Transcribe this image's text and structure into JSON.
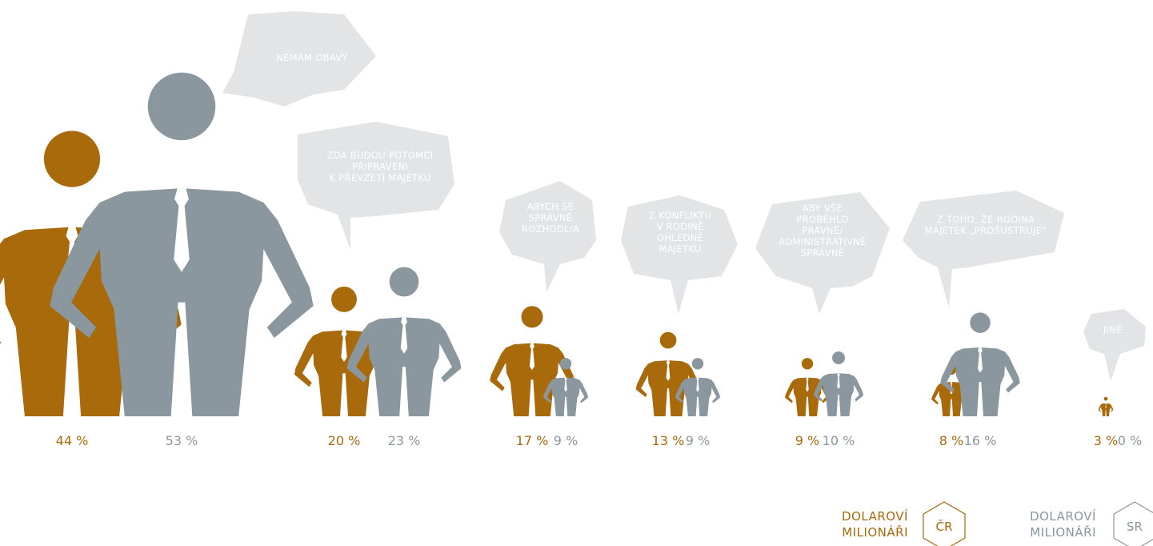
{
  "colors": {
    "cr": "#a86a0b",
    "sr": "#8a979e",
    "bubble": "#e3e4e5",
    "bubble_text": "#ffffff"
  },
  "chart_data": {
    "type": "bar",
    "title": "",
    "xlabel": "",
    "ylabel": "",
    "ylim": [
      0,
      55
    ],
    "categories": [
      [
        "NEMÁM OBAVY"
      ],
      [
        "ZDA BUDOU POTOMCI",
        "PŘIPRAVENI",
        "K PŘEVZETÍ MAJETKU"
      ],
      [
        "ABYCH SE",
        "SPRÁVNĚ",
        "ROZHODL/A"
      ],
      [
        "Z KONFLIKTU",
        "V RODINĚ",
        "OHLEDNĚ",
        "MAJETKU"
      ],
      [
        "ABY VŠE",
        "PROBĚHLO",
        "PRÁVNĚ/",
        "ADMINISTRATIVNĚ",
        "SPRÁVNĚ"
      ],
      [
        "Z TOHO, ŽE RODINA",
        "MAJETEK „PROŠUSTRUJE“"
      ],
      [
        "JINÉ"
      ]
    ],
    "series": [
      {
        "name": "ČR",
        "values": [
          44,
          20,
          17,
          13,
          9,
          8,
          3
        ],
        "labels": [
          "44 %",
          "20 %",
          "17 %",
          "13 %",
          "9 %",
          "8 %",
          "3 %"
        ]
      },
      {
        "name": "SR",
        "values": [
          53,
          23,
          9,
          9,
          10,
          16,
          0
        ],
        "labels": [
          "53 %",
          "23 %",
          "9 %",
          "9 %",
          "10 %",
          "16 %",
          "0 %"
        ]
      }
    ],
    "legend": {
      "placement": "bottom-right",
      "items": [
        {
          "lines": [
            "DOLAROVÍ",
            "MILIONÁŘI"
          ],
          "badge": "ČR"
        },
        {
          "lines": [
            "DOLAROVÍ",
            "MILIONÁŘI"
          ],
          "badge": "SR"
        }
      ]
    }
  }
}
